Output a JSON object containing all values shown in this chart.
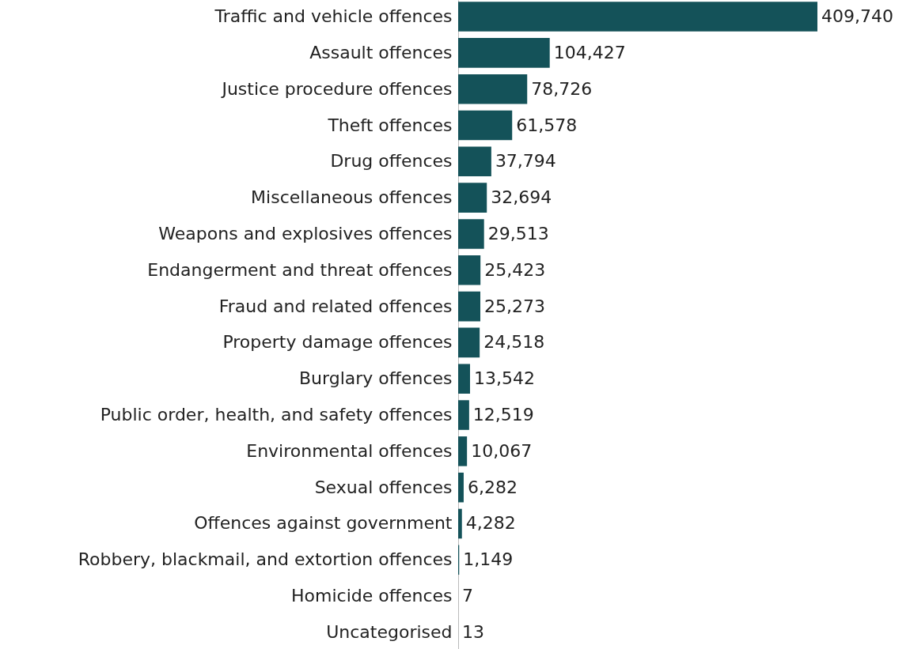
{
  "chart_data": {
    "type": "bar",
    "orientation": "horizontal",
    "color": "#145259",
    "xlim": [
      0,
      409740
    ],
    "categories": [
      "Traffic and vehicle offences",
      "Assault offences",
      "Justice procedure offences",
      "Theft offences",
      "Drug offences",
      "Miscellaneous offences",
      "Weapons and explosives offences",
      "Endangerment and threat offences",
      "Fraud and related offences",
      "Property damage offences",
      "Burglary offences",
      "Public order, health, and safety offences",
      "Environmental offences",
      "Sexual offences",
      "Offences against government",
      "Robbery, blackmail, and extortion offences",
      "Homicide offences",
      "Uncategorised"
    ],
    "values": [
      409740,
      104427,
      78726,
      61578,
      37794,
      32694,
      29513,
      25423,
      25273,
      24518,
      13542,
      12519,
      10067,
      6282,
      4282,
      1149,
      7,
      13
    ],
    "value_labels": [
      "409,740",
      "104,427",
      "78,726",
      "61,578",
      "37,794",
      "32,694",
      "29,513",
      "25,423",
      "25,273",
      "24,518",
      "13,542",
      "12,519",
      "10,067",
      "6,282",
      "4,282",
      "1,149",
      "7",
      "13"
    ]
  }
}
